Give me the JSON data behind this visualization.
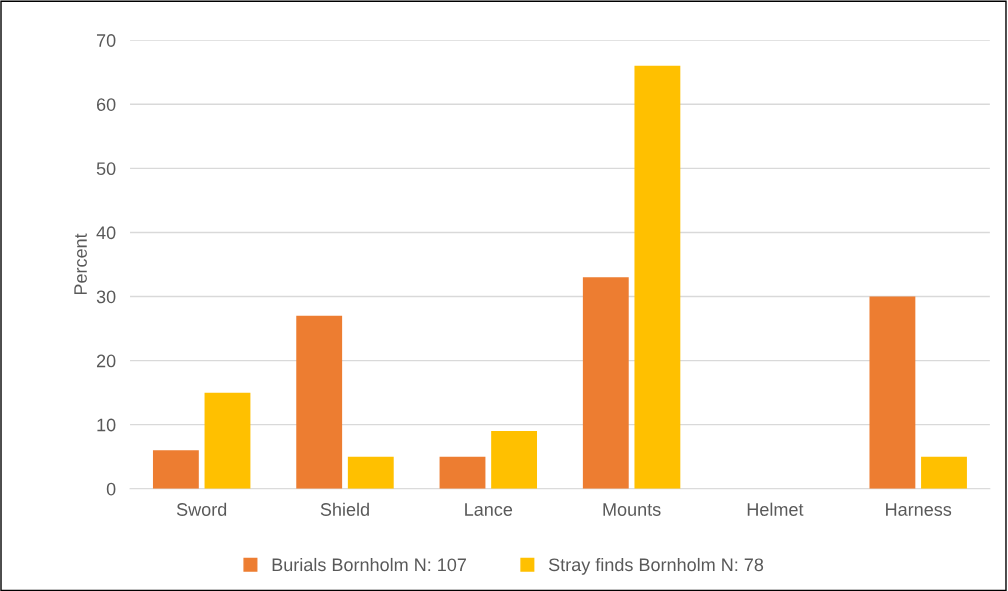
{
  "chart_data": {
    "type": "bar",
    "ylabel": "Percent",
    "categories": [
      "Sword",
      "Shield",
      "Lance",
      "Mounts",
      "Helmet",
      "Harness"
    ],
    "series": [
      {
        "name": "Burials Bornholm N: 107",
        "color": "#ed7d31",
        "values": [
          6,
          27,
          5,
          33,
          0,
          30
        ]
      },
      {
        "name": "Stray finds Bornholm N: 78",
        "color": "#ffc000",
        "values": [
          15,
          5,
          9,
          66,
          0,
          5
        ]
      }
    ],
    "ylim": [
      0,
      70
    ],
    "yticks": [
      0,
      10,
      20,
      30,
      40,
      50,
      60,
      70
    ],
    "grid": "y",
    "legend": "bottom"
  }
}
